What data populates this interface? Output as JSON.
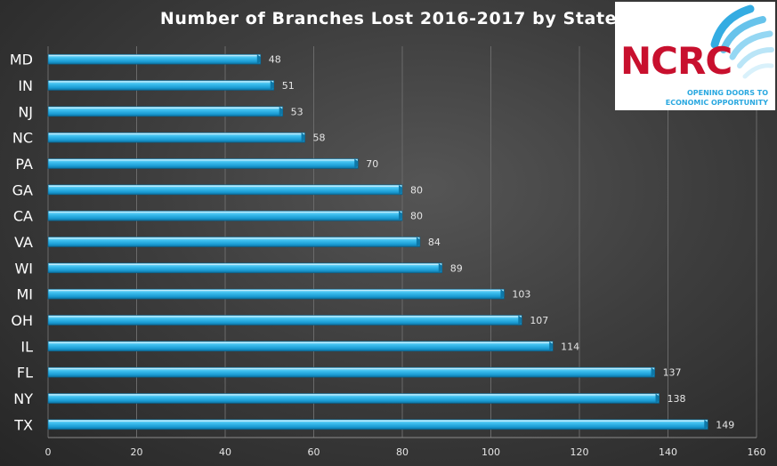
{
  "chart_data": {
    "type": "bar",
    "orientation": "horizontal",
    "title": "Number of Branches Lost 2016-2017 by State",
    "categories": [
      "MD",
      "IN",
      "NJ",
      "NC",
      "PA",
      "GA",
      "CA",
      "VA",
      "WI",
      "MI",
      "OH",
      "IL",
      "FL",
      "NY",
      "TX"
    ],
    "values": [
      48,
      51,
      53,
      58,
      70,
      80,
      80,
      84,
      89,
      103,
      107,
      114,
      137,
      138,
      149
    ],
    "xlim": [
      0,
      160
    ],
    "xticks": [
      0,
      20,
      40,
      60,
      80,
      100,
      120,
      140,
      160
    ],
    "xlabel": "",
    "ylabel": "",
    "grid": "vertical",
    "bar_color": "#2bb5e8",
    "background_color": "#3a3a3a"
  },
  "logo": {
    "name": "NCRC",
    "tagline_line1": "OPENING DOORS TO",
    "tagline_line2": "ECONOMIC OPPORTUNITY",
    "brand_color": "#c8102e",
    "accent_color": "#29a8e0"
  }
}
